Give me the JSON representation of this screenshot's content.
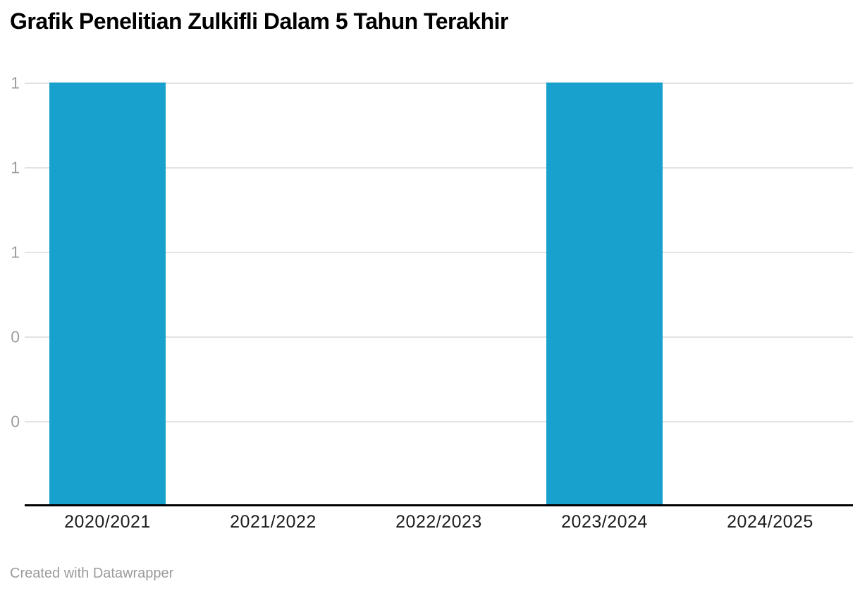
{
  "header": {
    "title": "Grafik Penelitian Zulkifli Dalam 5 Tahun Terakhir"
  },
  "footer": {
    "attribution": "Created with Datawrapper"
  },
  "colors": {
    "bar": "#18a1cd",
    "gridline": "#e3e3e3",
    "axis_line": "#000000",
    "ytick_label": "#9d9d9d",
    "xtick_label": "#1d1d1d",
    "footer_text": "#9b9b9b",
    "background": "#ffffff"
  },
  "chart_data": {
    "type": "bar",
    "title": "Grafik Penelitian Zulkifli Dalam 5 Tahun Terakhir",
    "categories": [
      "2020/2021",
      "2021/2022",
      "2022/2023",
      "2023/2024",
      "2024/2025"
    ],
    "values": [
      1,
      0,
      0,
      1,
      0
    ],
    "xlabel": "",
    "ylabel": "",
    "ylim": [
      0,
      1
    ],
    "ytick_values": [
      1,
      0.8,
      0.6,
      0.4,
      0.2
    ],
    "ytick_labels": [
      "1",
      "1",
      "1",
      "0",
      "0"
    ],
    "grid": "horizontal",
    "legend_position": "none",
    "bar_color": "#18a1cd"
  }
}
